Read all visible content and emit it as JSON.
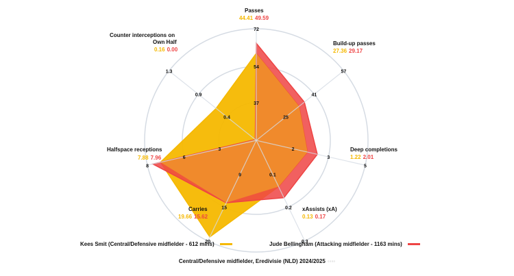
{
  "chart_data": {
    "type": "radar",
    "title": "",
    "subtitle": "Central/Defensive midfielder, Eredivisie (NLD) 2024/2025",
    "axes": [
      {
        "name": "Passes",
        "ticks": [
          "37",
          "54",
          "72"
        ],
        "p1": "44.41",
        "p2": "49.59"
      },
      {
        "name": "Build-up passes",
        "ticks": [
          "25",
          "41",
          "57"
        ],
        "p1": "27.36",
        "p2": "29.17"
      },
      {
        "name": "Deep completions",
        "ticks": [
          "2",
          "3",
          "5"
        ],
        "p1": "1.22",
        "p2": "2.01"
      },
      {
        "name": "xAssists (xA)",
        "ticks": [
          "0.1",
          "0.2",
          "0.3"
        ],
        "p1": "0.13",
        "p2": "0.17"
      },
      {
        "name": "Carries",
        "ticks": [
          "9",
          "15",
          "20"
        ],
        "p1": "19.66",
        "p2": "15.62"
      },
      {
        "name": "Halfspace receptions",
        "ticks": [
          "3",
          "6",
          "8"
        ],
        "p1": "7.88",
        "p2": "7.96"
      },
      {
        "name": "Counter interceptions on Own Half",
        "ticks": [
          "0.4",
          "0.9",
          "1.3"
        ],
        "p1": "0.16",
        "p2": "0.00"
      }
    ],
    "series": [
      {
        "name": "Kees Smit (Central/Defensive midfielder - 612 mins)",
        "color": "#f5b800",
        "values": [
          44.41,
          27.36,
          1.22,
          0.13,
          19.66,
          7.88,
          0.16
        ],
        "radius_fraction": [
          0.78,
          0.49,
          0.47,
          0.46,
          0.96,
          0.88,
          0.46
        ]
      },
      {
        "name": "Jude Bellingham (Attacking midfielder - 1163 mins)",
        "color": "#ee4444",
        "values": [
          49.59,
          29.17,
          2.01,
          0.17,
          15.62,
          7.96,
          0.0
        ],
        "radius_fraction": [
          0.87,
          0.55,
          0.56,
          0.57,
          0.62,
          0.95,
          0.0
        ]
      }
    ],
    "rings": 3,
    "grid": true,
    "legend_position": "bottom"
  },
  "labels": {
    "passes": {
      "title": "Passes",
      "p1": "44.41",
      "p2": "49.59"
    },
    "buildup": {
      "title": "Build-up passes",
      "p1": "27.36",
      "p2": "29.17"
    },
    "deep": {
      "title": "Deep completions",
      "p1": "1.22",
      "p2": "2.01"
    },
    "xa": {
      "title": "xAssists (xA)",
      "p1": "0.13",
      "p2": "0.17"
    },
    "carries": {
      "title": "Carries",
      "p1": "19.66",
      "p2": "15.62"
    },
    "halfspace": {
      "title": "Halfspace receptions",
      "p1": "7.88",
      "p2": "7.96"
    },
    "counter": {
      "title1": "Counter interceptions on",
      "title2": "Own Half",
      "p1": "0.16",
      "p2": "0.00"
    }
  },
  "legend": {
    "player1": "Kees Smit (Central/Defensive midfielder - 612 mins)",
    "player2": "Jude Bellingham (Attacking midfielder - 1163 mins)",
    "color1": "#f5b800",
    "color2": "#ee4444"
  },
  "caption": {
    "text": "Central/Defensive midfielder, Eredivisie (NLD) 2024/2025",
    "mark": "◦◦◦◦"
  }
}
